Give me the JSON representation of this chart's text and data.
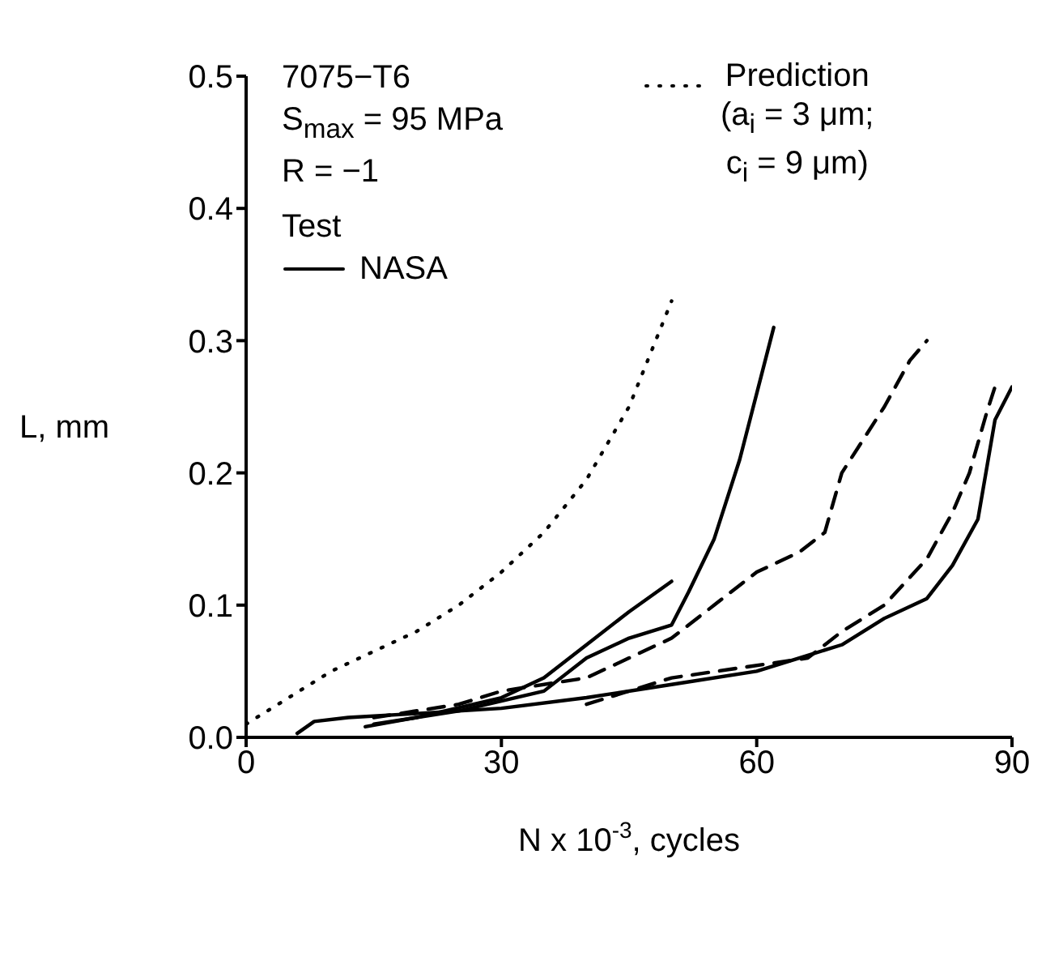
{
  "chart_data": {
    "type": "line",
    "xlabel": "N x 10$^{-3}$, cycles",
    "ylabel": "L, mm",
    "legend_title": "Test",
    "legend": "top",
    "marker": "none",
    "annotations": [
      "7075−T6",
      "S$_{max}$ = 95 MPa",
      "R = −1"
    ],
    "xlim": [
      0,
      90
    ],
    "xticks": [
      0,
      30,
      60,
      90
    ],
    "ylim": [
      0,
      0.5
    ],
    "yticks": [
      {
        "value": 0,
        "label": "0.0"
      },
      {
        "value": 0.1,
        "label": "0.1"
      },
      {
        "value": 0.2,
        "label": "0.2"
      },
      {
        "value": 0.3,
        "label": "0.3"
      },
      {
        "value": 0.4,
        "label": "0.4"
      },
      {
        "value": 0.5,
        "label": "0.5"
      }
    ],
    "series": [
      {
        "name": "Prediction\n(a$_{i}$ = 3 μm;\nc$_{i}$ = 9 μm)",
        "color": "#000000",
        "line_style": "dotted",
        "x": [
          0,
          5,
          10,
          15,
          20,
          25,
          30,
          35,
          40,
          45,
          50
        ],
        "values": [
          0.01,
          0.03,
          0.05,
          0.065,
          0.08,
          0.1,
          0.125,
          0.155,
          0.195,
          0.25,
          0.33
        ]
      },
      {
        "name": "NASA",
        "color": "#000000",
        "line_style": "solid",
        "x": [
          14,
          20,
          30,
          35,
          40,
          45,
          50
        ],
        "values": [
          0.008,
          0.015,
          0.03,
          0.045,
          0.07,
          0.095,
          0.118
        ]
      },
      {
        "color": "#000000",
        "line_style": "solid",
        "x": [
          15,
          25,
          35,
          40,
          45,
          50,
          52,
          55,
          58,
          62
        ],
        "values": [
          0.01,
          0.02,
          0.035,
          0.06,
          0.075,
          0.085,
          0.11,
          0.15,
          0.21,
          0.31
        ]
      },
      {
        "color": "#000000",
        "line_style": "solid",
        "x": [
          6,
          8,
          12,
          20,
          30,
          40,
          50,
          60,
          65,
          70,
          75,
          80,
          83,
          86,
          88,
          90
        ],
        "values": [
          0.003,
          0.012,
          0.015,
          0.018,
          0.022,
          0.03,
          0.04,
          0.05,
          0.06,
          0.07,
          0.09,
          0.105,
          0.13,
          0.165,
          0.24,
          0.265
        ]
      },
      {
        "color": "#000000",
        "line_style": "dashed",
        "x": [
          15,
          25,
          30,
          40,
          45,
          50,
          55,
          60,
          65,
          68,
          70,
          72,
          75,
          78,
          80
        ],
        "values": [
          0.015,
          0.025,
          0.035,
          0.045,
          0.06,
          0.075,
          0.1,
          0.125,
          0.14,
          0.155,
          0.2,
          0.22,
          0.25,
          0.285,
          0.3
        ]
      },
      {
        "color": "#000000",
        "line_style": "dashed",
        "x": [
          40,
          50,
          66,
          70,
          75,
          80,
          83,
          85,
          87,
          88
        ],
        "values": [
          0.025,
          0.045,
          0.06,
          0.08,
          0.1,
          0.135,
          0.17,
          0.2,
          0.245,
          0.265
        ]
      }
    ]
  }
}
